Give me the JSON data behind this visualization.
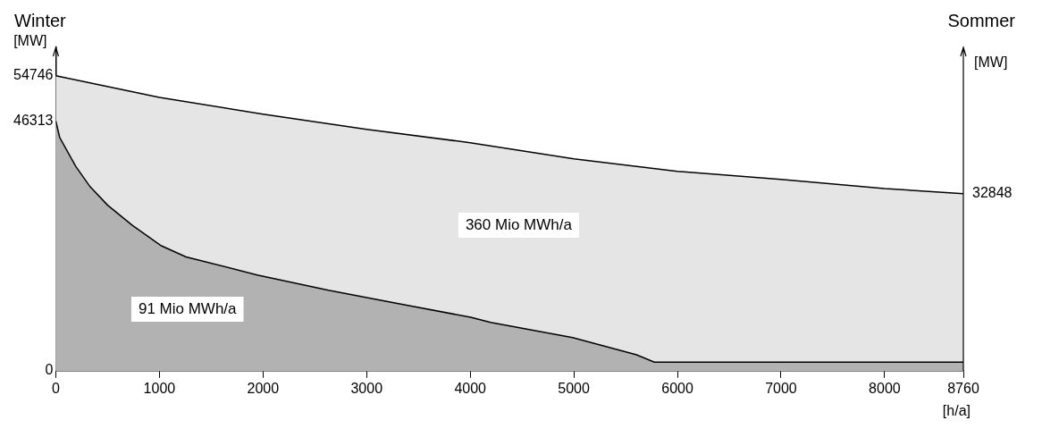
{
  "chart_data": {
    "type": "area",
    "ylabel": "[MW]",
    "y2label": "[MW]",
    "xlabel": "[h/a]",
    "xlim": [
      0,
      8760
    ],
    "xticks": [
      0,
      1000,
      2000,
      3000,
      4000,
      5000,
      6000,
      7000,
      8000,
      8760
    ],
    "ylim": [
      0,
      60000
    ],
    "yticks": [
      0,
      46313,
      54746
    ],
    "series": [
      {
        "color": "#000000",
        "x": [
          0,
          1000,
          2000,
          3000,
          4000,
          5000,
          6000,
          7000,
          8000,
          8760
        ],
        "values": [
          54746,
          50700,
          47600,
          44800,
          42300,
          39300,
          37000,
          35500,
          33800,
          32848
        ]
      },
      {
        "color": "#000000",
        "x": [
          0,
          37,
          192,
          330,
          500,
          741,
          1018,
          1257,
          1944,
          2630,
          3317,
          4004,
          4196,
          4988,
          5605,
          5777,
          8760
        ],
        "values": [
          46313,
          43290,
          37930,
          34150,
          30710,
          26940,
          23180,
          21110,
          17770,
          14940,
          12420,
          9910,
          8960,
          6140,
          2960,
          1600,
          1600
        ]
      }
    ],
    "annotations": [
      "Winter",
      "Sommer",
      "360 Mio MWh/a",
      "91 Mio MWh/a",
      {
        "text": "32848",
        "x": 8760,
        "y": 32848
      }
    ],
    "grid": false,
    "legend": false
  }
}
